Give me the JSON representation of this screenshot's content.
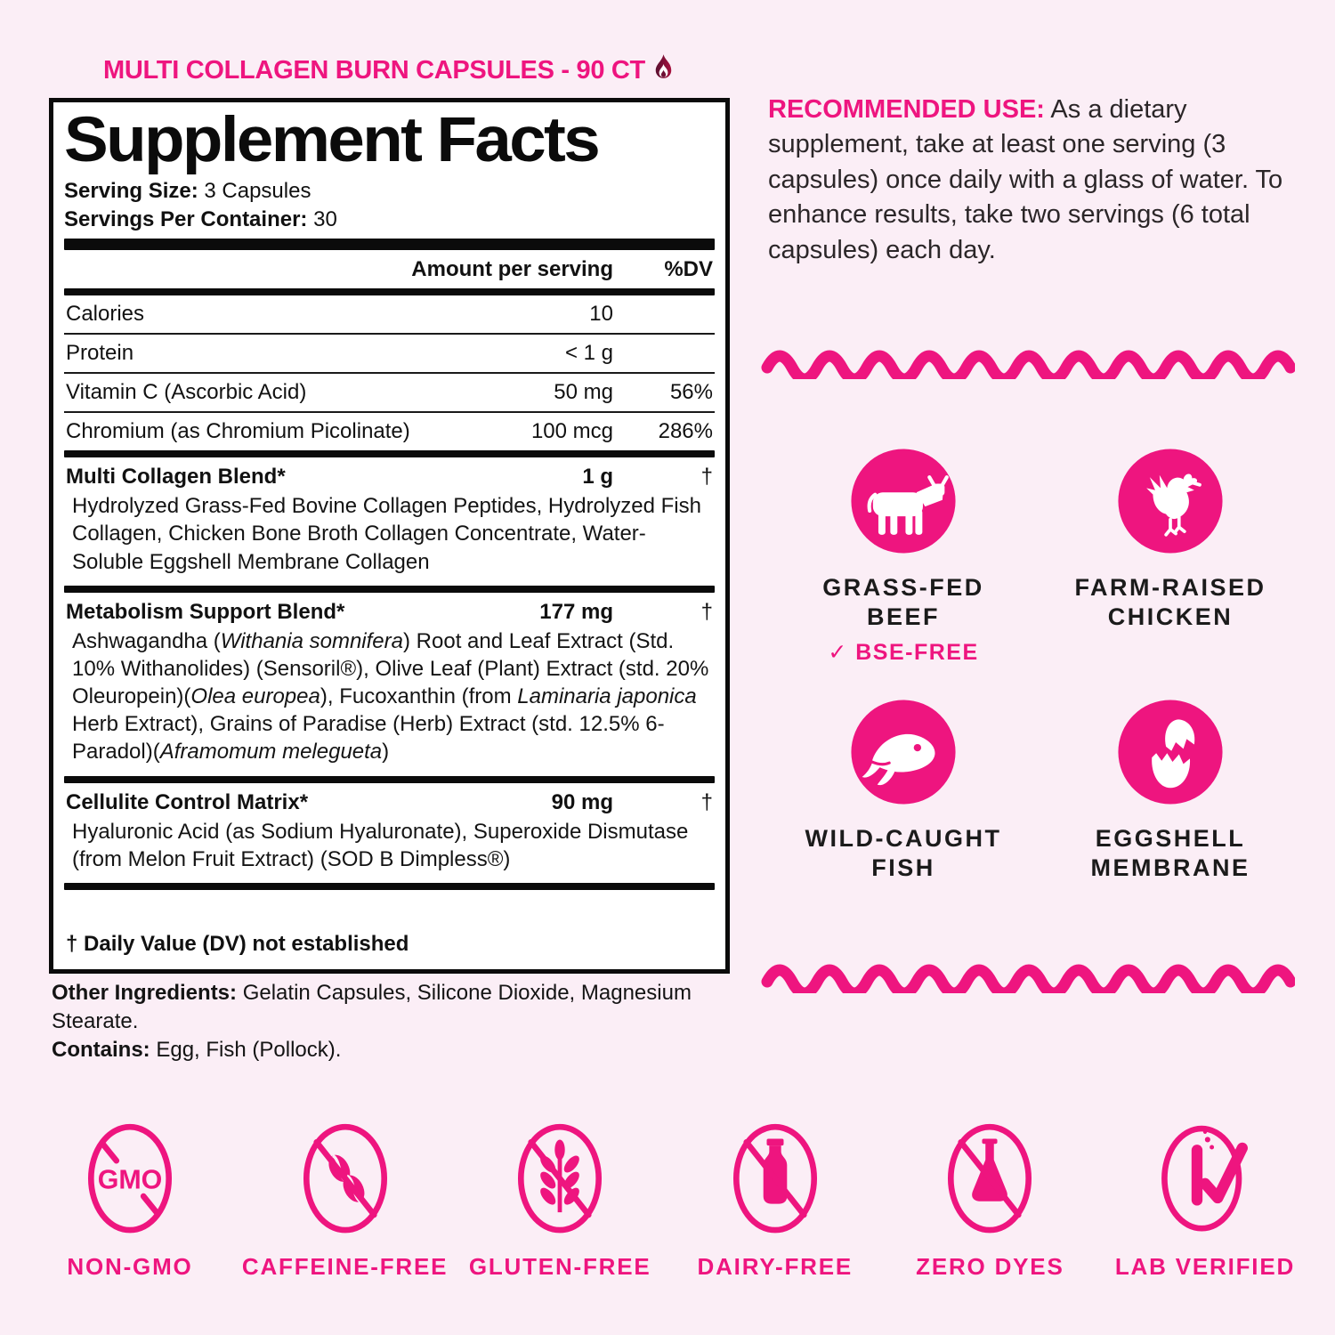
{
  "page": {
    "background": "#fbeef6",
    "accent_pink": "#ee157f",
    "panel_bg": "#ffffff",
    "ink": "#0b0b0b"
  },
  "header": {
    "title": "MULTI COLLAGEN BURN CAPSULES - 90 CT",
    "icon": "flame-icon"
  },
  "recommended_use": {
    "label": "RECOMMENDED USE:",
    "text": " As a dietary supplement, take at least one serving (3 capsules) once daily with a glass of water. To enhance results, take two servings (6 total capsules) each day."
  },
  "facts": {
    "title": "Supplement Facts",
    "serving_size_label": "Serving Size:",
    "serving_size_value": " 3 Capsules",
    "servings_label": "Servings Per Container:",
    "servings_value": " 30",
    "columns": {
      "amount": "Amount per serving",
      "dv": "%DV"
    },
    "rows": [
      {
        "name": "Calories",
        "amount": "10",
        "dv": ""
      },
      {
        "name": "Protein",
        "amount": "< 1 g",
        "dv": ""
      },
      {
        "name": "Vitamin C (Ascorbic Acid)",
        "amount": "50 mg",
        "dv": "56%"
      },
      {
        "name": "Chromium (as Chromium Picolinate)",
        "amount": "100 mcg",
        "dv": "286%"
      }
    ],
    "blends": [
      {
        "name": "Multi Collagen Blend*",
        "amount": "1 g",
        "dv": "†",
        "desc": [
          {
            "t": "Hydrolyzed Grass-Fed Bovine Collagen Peptides, Hydrolyzed Fish Collagen, Chicken Bone Broth Collagen Concentrate, Water-Soluble Eggshell Membrane Collagen"
          }
        ]
      },
      {
        "name": "Metabolism Support Blend*",
        "amount": "177 mg",
        "dv": "†",
        "desc": [
          {
            "t": "Ashwagandha ("
          },
          {
            "t": "Withania somnifera",
            "i": true
          },
          {
            "t": ") Root and Leaf Extract (Std. 10% Withanolides) (Sensoril®), Olive Leaf (Plant) Extract (std. 20% Oleuropein)("
          },
          {
            "t": "Olea europea",
            "i": true
          },
          {
            "t": "), Fucoxanthin (from "
          },
          {
            "t": "Laminaria japonica",
            "i": true
          },
          {
            "t": " Herb Extract), Grains of Paradise (Herb) Extract (std. 12.5% 6-Paradol)("
          },
          {
            "t": "Aframomum melegueta",
            "i": true
          },
          {
            "t": ")"
          }
        ]
      },
      {
        "name": "Cellulite Control Matrix*",
        "amount": "90 mg",
        "dv": "†",
        "desc": [
          {
            "t": "Hyaluronic Acid (as Sodium Hyaluronate), Superoxide Dismutase (from Melon Fruit Extract) (SOD B Dimpless®)"
          }
        ]
      }
    ],
    "footnote": "† Daily Value (DV) not established"
  },
  "other_ingredients": {
    "label": "Other Ingredients:",
    "text": " Gelatin Capsules, Silicone Dioxide, Magnesium Stearate.",
    "contains_label": "Contains:",
    "contains_text": " Egg, Fish (Pollock)."
  },
  "source_badges": [
    {
      "icon": "cow-icon",
      "label": "GRASS-FED\nBEEF",
      "sub": "✓ BSE-FREE"
    },
    {
      "icon": "chicken-icon",
      "label": "FARM-RAISED\nCHICKEN",
      "sub": ""
    },
    {
      "icon": "fish-icon",
      "label": "WILD-CAUGHT\nFISH",
      "sub": ""
    },
    {
      "icon": "eggshell-icon",
      "label": "EGGSHELL\nMEMBRANE",
      "sub": ""
    }
  ],
  "feature_badges": [
    {
      "icon": "non-gmo-icon",
      "label": "NON-GMO",
      "icon_text": "GMO"
    },
    {
      "icon": "caffeine-free-icon",
      "label": "CAFFEINE-FREE"
    },
    {
      "icon": "gluten-free-icon",
      "label": "GLUTEN-FREE"
    },
    {
      "icon": "dairy-free-icon",
      "label": "DAIRY-FREE"
    },
    {
      "icon": "zero-dyes-icon",
      "label": "ZERO DYES"
    },
    {
      "icon": "lab-verified-icon",
      "label": "LAB VERIFIED"
    }
  ]
}
